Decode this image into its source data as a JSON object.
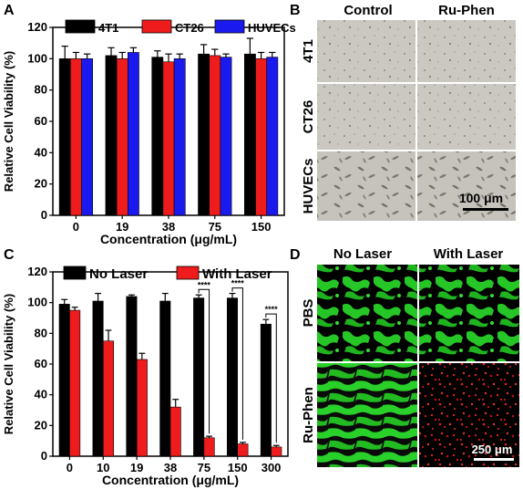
{
  "panels": {
    "A": "A",
    "B": "B",
    "C": "C",
    "D": "D"
  },
  "colors": {
    "black": "#000000",
    "red": "#ee1c1c",
    "blue": "#1a1aee",
    "micro_bg": "#c9c6c0",
    "fluor_green": "#22cc22",
    "fluor_red": "#cc2222"
  },
  "chart_data": [
    {
      "type": "bar",
      "panel": "A",
      "categories": [
        "0",
        "19",
        "38",
        "75",
        "150"
      ],
      "xlabel": "Concentration (μg/mL)",
      "ylabel": "Relative Cell Viability (%)",
      "ylim": [
        0,
        120
      ],
      "yticks": [
        "0",
        "20",
        "40",
        "60",
        "80",
        "100",
        "120"
      ],
      "legend_position": "top",
      "series": [
        {
          "name": "4T1",
          "color": "#000000",
          "values": [
            100,
            102,
            101,
            103,
            103
          ],
          "errors": [
            8,
            5,
            4,
            6,
            10
          ]
        },
        {
          "name": "CT26",
          "color": "#ee1c1c",
          "values": [
            100,
            100,
            98,
            102,
            100
          ],
          "errors": [
            4,
            4,
            5,
            4,
            4
          ]
        },
        {
          "name": "HUVECs",
          "color": "#1a1aee",
          "values": [
            100,
            104,
            100,
            101,
            101
          ],
          "errors": [
            3,
            3,
            3,
            2,
            3
          ]
        }
      ]
    },
    {
      "type": "bar",
      "panel": "C",
      "categories": [
        "0",
        "10",
        "19",
        "38",
        "75",
        "150",
        "300"
      ],
      "xlabel": "Concentration (μg/mL)",
      "ylabel": "Relative Cell Viability (%)",
      "ylim": [
        0,
        120
      ],
      "yticks": [
        "0",
        "20",
        "40",
        "60",
        "80",
        "100",
        "120"
      ],
      "legend_position": "top",
      "significance": [
        "****",
        "****",
        "****"
      ],
      "significance_categories": [
        "75",
        "150",
        "300"
      ],
      "series": [
        {
          "name": "No Laser",
          "color": "#000000",
          "values": [
            99,
            101,
            104,
            101,
            103,
            103,
            86
          ],
          "errors": [
            3,
            5,
            1,
            5,
            2,
            3,
            3
          ]
        },
        {
          "name": "With Laser",
          "color": "#ee1c1c",
          "values": [
            95,
            75,
            63,
            32,
            12,
            8,
            6
          ],
          "errors": [
            2,
            7,
            4,
            5,
            1,
            1,
            1
          ]
        }
      ]
    }
  ],
  "micrographs_B": {
    "columns": [
      "Control",
      "Ru-Phen"
    ],
    "rows": [
      "4T1",
      "CT26",
      "HUVECs"
    ],
    "scale_bar": "100 μm"
  },
  "micrographs_D": {
    "columns": [
      "No Laser",
      "With Laser"
    ],
    "rows": [
      "PBS",
      "Ru-Phen"
    ],
    "scale_bar": "250 μm"
  }
}
